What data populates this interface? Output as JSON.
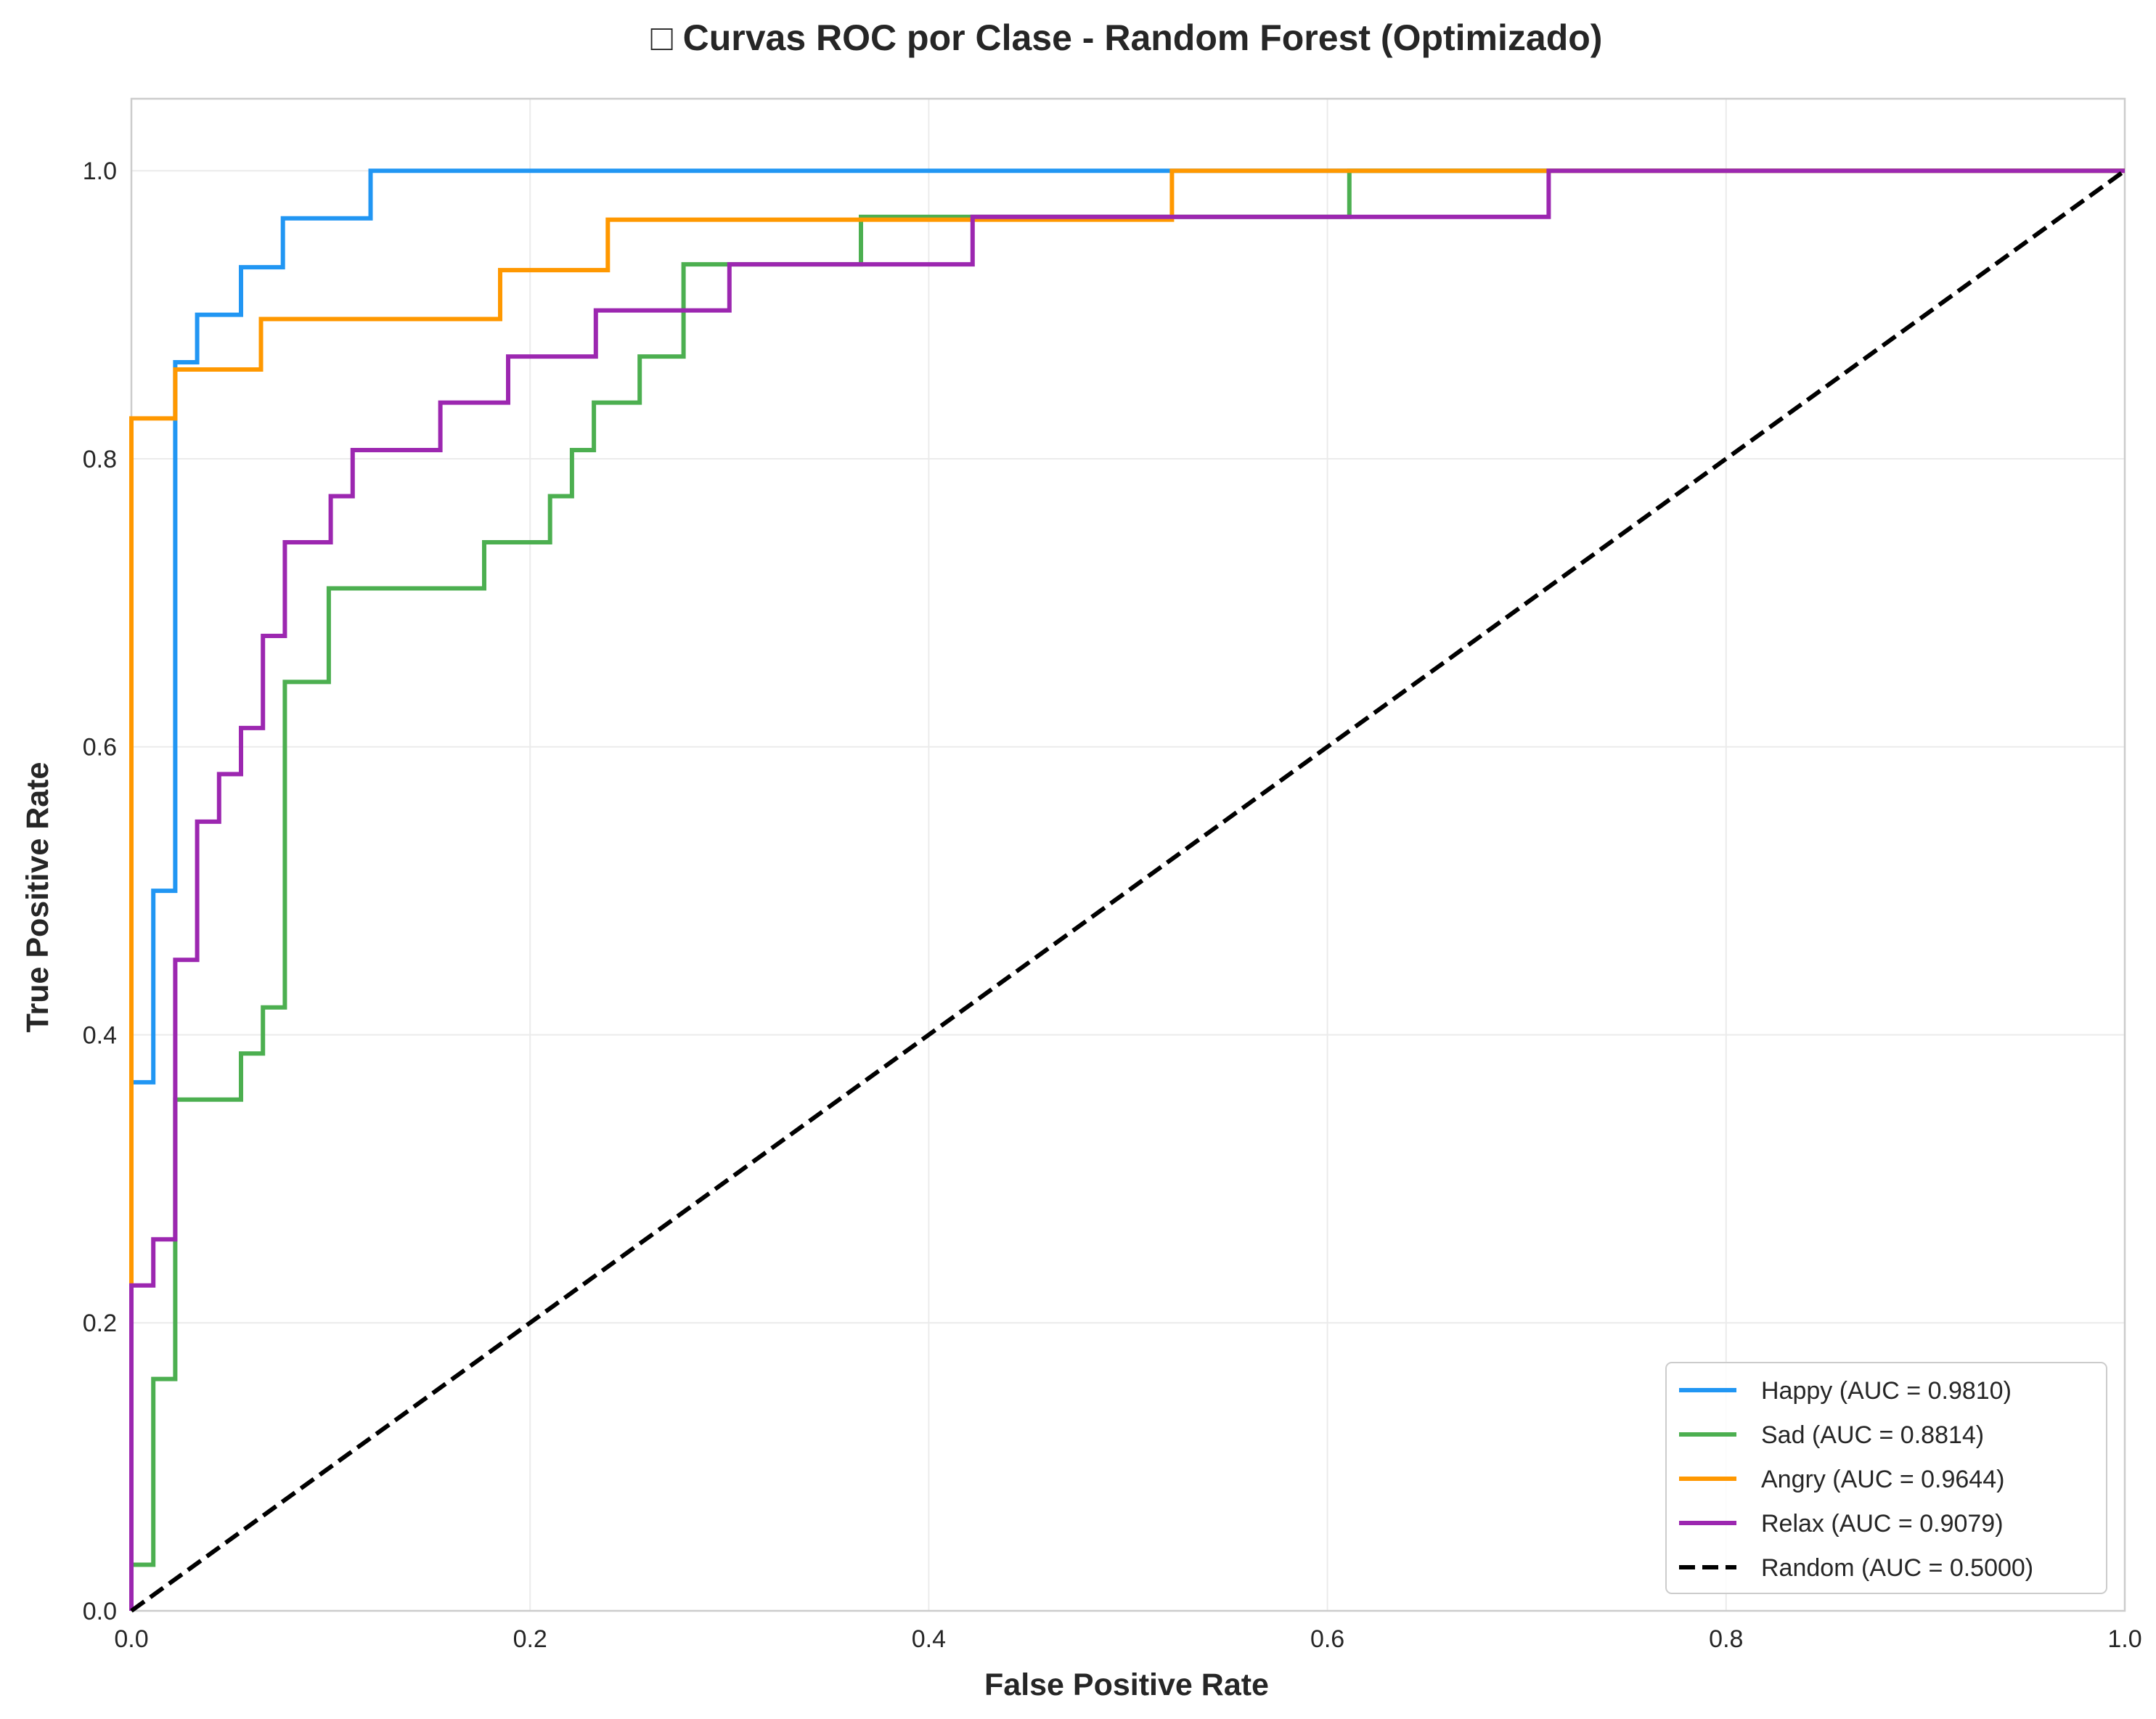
{
  "chart_data": {
    "type": "line",
    "title": "□ Curvas ROC por Clase - Random Forest (Optimizado)",
    "xlabel": "False Positive Rate",
    "ylabel": "True Positive Rate",
    "xlim": [
      0.0,
      1.0
    ],
    "ylim": [
      0.0,
      1.05
    ],
    "xticks": [
      "0.0",
      "0.2",
      "0.4",
      "0.6",
      "0.8",
      "1.0"
    ],
    "yticks": [
      "0.0",
      "0.2",
      "0.4",
      "0.6",
      "0.8",
      "1.0"
    ],
    "grid": true,
    "legend_position": "lower-right",
    "series": [
      {
        "name": "Happy (AUC = 0.9810)",
        "color": "#2196F3",
        "dash": false,
        "points": [
          [
            0,
            0
          ],
          [
            0,
            0.367
          ],
          [
            0.011,
            0.367
          ],
          [
            0.011,
            0.5
          ],
          [
            0.022,
            0.5
          ],
          [
            0.022,
            0.867
          ],
          [
            0.033,
            0.867
          ],
          [
            0.033,
            0.9
          ],
          [
            0.055,
            0.9
          ],
          [
            0.055,
            0.933
          ],
          [
            0.076,
            0.933
          ],
          [
            0.076,
            0.967
          ],
          [
            0.12,
            0.967
          ],
          [
            0.12,
            1.0
          ],
          [
            1.0,
            1.0
          ]
        ]
      },
      {
        "name": "Sad (AUC = 0.8814)",
        "color": "#4CAF50",
        "dash": false,
        "points": [
          [
            0,
            0
          ],
          [
            0,
            0.032
          ],
          [
            0.011,
            0.032
          ],
          [
            0.011,
            0.161
          ],
          [
            0.022,
            0.161
          ],
          [
            0.022,
            0.355
          ],
          [
            0.055,
            0.355
          ],
          [
            0.055,
            0.387
          ],
          [
            0.066,
            0.387
          ],
          [
            0.066,
            0.419
          ],
          [
            0.077,
            0.419
          ],
          [
            0.077,
            0.645
          ],
          [
            0.099,
            0.645
          ],
          [
            0.099,
            0.71
          ],
          [
            0.177,
            0.71
          ],
          [
            0.177,
            0.742
          ],
          [
            0.21,
            0.742
          ],
          [
            0.21,
            0.774
          ],
          [
            0.221,
            0.774
          ],
          [
            0.221,
            0.806
          ],
          [
            0.232,
            0.806
          ],
          [
            0.232,
            0.839
          ],
          [
            0.255,
            0.839
          ],
          [
            0.255,
            0.871
          ],
          [
            0.277,
            0.871
          ],
          [
            0.277,
            0.935
          ],
          [
            0.366,
            0.935
          ],
          [
            0.366,
            0.968
          ],
          [
            0.611,
            0.968
          ],
          [
            0.611,
            1.0
          ],
          [
            1.0,
            1.0
          ]
        ]
      },
      {
        "name": "Angry (AUC = 0.9644)",
        "color": "#FF9800",
        "dash": false,
        "points": [
          [
            0,
            0
          ],
          [
            0,
            0.828
          ],
          [
            0.022,
            0.828
          ],
          [
            0.022,
            0.862
          ],
          [
            0.065,
            0.862
          ],
          [
            0.065,
            0.897
          ],
          [
            0.185,
            0.897
          ],
          [
            0.185,
            0.931
          ],
          [
            0.239,
            0.931
          ],
          [
            0.239,
            0.966
          ],
          [
            0.522,
            0.966
          ],
          [
            0.522,
            1.0
          ],
          [
            1.0,
            1.0
          ]
        ]
      },
      {
        "name": "Relax (AUC = 0.9079)",
        "color": "#9C27B0",
        "dash": false,
        "points": [
          [
            0,
            0
          ],
          [
            0,
            0.226
          ],
          [
            0.011,
            0.226
          ],
          [
            0.011,
            0.258
          ],
          [
            0.022,
            0.258
          ],
          [
            0.022,
            0.452
          ],
          [
            0.033,
            0.452
          ],
          [
            0.033,
            0.548
          ],
          [
            0.044,
            0.548
          ],
          [
            0.044,
            0.581
          ],
          [
            0.055,
            0.581
          ],
          [
            0.055,
            0.613
          ],
          [
            0.066,
            0.613
          ],
          [
            0.066,
            0.677
          ],
          [
            0.077,
            0.677
          ],
          [
            0.077,
            0.742
          ],
          [
            0.1,
            0.742
          ],
          [
            0.1,
            0.774
          ],
          [
            0.111,
            0.774
          ],
          [
            0.111,
            0.806
          ],
          [
            0.155,
            0.806
          ],
          [
            0.155,
            0.839
          ],
          [
            0.189,
            0.839
          ],
          [
            0.189,
            0.871
          ],
          [
            0.233,
            0.871
          ],
          [
            0.233,
            0.903
          ],
          [
            0.3,
            0.903
          ],
          [
            0.3,
            0.935
          ],
          [
            0.422,
            0.935
          ],
          [
            0.422,
            0.968
          ],
          [
            0.711,
            0.968
          ],
          [
            0.711,
            1.0
          ],
          [
            1.0,
            1.0
          ]
        ]
      },
      {
        "name": "Random (AUC = 0.5000)",
        "color": "#000000",
        "dash": true,
        "points": [
          [
            0,
            0
          ],
          [
            1,
            1
          ]
        ]
      }
    ]
  }
}
